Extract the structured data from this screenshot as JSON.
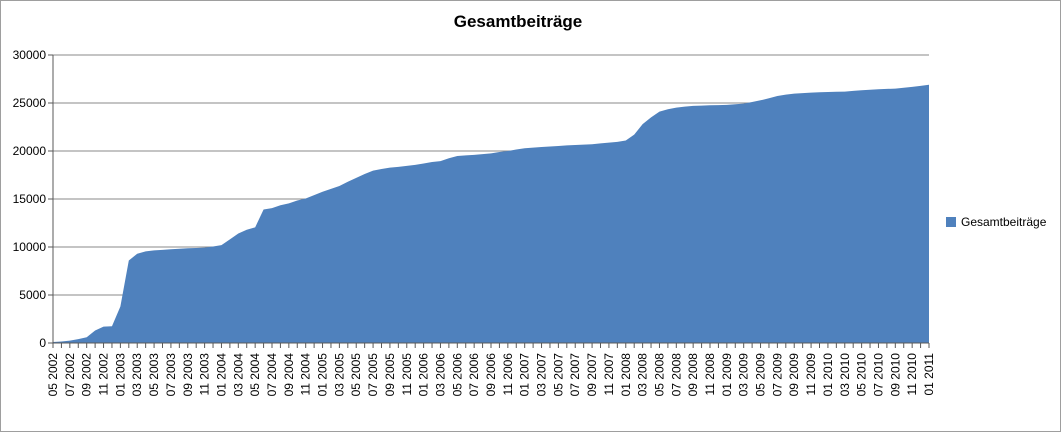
{
  "window": {
    "background": "#ffffff",
    "border_color": "#9e9e9e"
  },
  "colors": {
    "gridline": "#898989",
    "axis": "#595959",
    "label_text": "#000000",
    "series_fill": "#4f81bd"
  },
  "chart_data": {
    "type": "area",
    "title": "Gesamtbeiträge",
    "xlabel": "",
    "ylabel": "",
    "ylim": [
      0,
      30000
    ],
    "grid": true,
    "legend": {
      "position": "right",
      "entries": [
        {
          "label": "Gesamtbeiträge",
          "color": "#4f81bd"
        }
      ]
    },
    "y_ticks": [
      0,
      5000,
      10000,
      15000,
      20000,
      25000,
      30000
    ],
    "x_tick_labels": [
      "05 2002",
      "07 2002",
      "09 2002",
      "11 2002",
      "01 2003",
      "03 2003",
      "05 2003",
      "07 2003",
      "09 2003",
      "11 2003",
      "01 2004",
      "03 2004",
      "05 2004",
      "07 2004",
      "09 2004",
      "11 2004",
      "01 2005",
      "03 2005",
      "05 2005",
      "07 2005",
      "09 2005",
      "11 2005",
      "01 2006",
      "03 2006",
      "05 2006",
      "07 2006",
      "09 2006",
      "11 2006",
      "01 2007",
      "03 2007",
      "05 2007",
      "07 2007",
      "09 2007",
      "11 2007",
      "01 2008",
      "03 2008",
      "05 2008",
      "07 2008",
      "09 2008",
      "11 2008",
      "01 2009",
      "03 2009",
      "05 2009",
      "07 2009",
      "09 2009",
      "11 2009",
      "01 2010",
      "03 2010",
      "05 2010",
      "07 2010",
      "09 2010",
      "11 2010",
      "01 2011"
    ],
    "x_months_per_point": 1,
    "x_points_per_label": 2,
    "series": [
      {
        "name": "Gesamtbeiträge",
        "color": "#4f81bd",
        "first_point": "05 2002",
        "last_point": "01 2011",
        "values": [
          100,
          150,
          250,
          400,
          600,
          1300,
          1700,
          1750,
          3800,
          8600,
          9300,
          9550,
          9650,
          9700,
          9760,
          9820,
          9870,
          9900,
          9930,
          10050,
          10200,
          10800,
          11400,
          11800,
          12050,
          13900,
          14050,
          14350,
          14550,
          14850,
          15050,
          15400,
          15750,
          16050,
          16350,
          16800,
          17200,
          17600,
          17950,
          18120,
          18270,
          18350,
          18450,
          18550,
          18700,
          18850,
          18950,
          19250,
          19480,
          19550,
          19600,
          19680,
          19750,
          19900,
          20000,
          20150,
          20280,
          20350,
          20420,
          20470,
          20520,
          20580,
          20630,
          20670,
          20700,
          20800,
          20870,
          20950,
          21100,
          21700,
          22800,
          23500,
          24100,
          24350,
          24520,
          24620,
          24700,
          24730,
          24760,
          24780,
          24800,
          24870,
          24940,
          25100,
          25280,
          25500,
          25730,
          25870,
          25980,
          26030,
          26080,
          26120,
          26150,
          26170,
          26190,
          26260,
          26330,
          26380,
          26430,
          26470,
          26500,
          26590,
          26680,
          26780,
          26900
        ]
      }
    ]
  }
}
